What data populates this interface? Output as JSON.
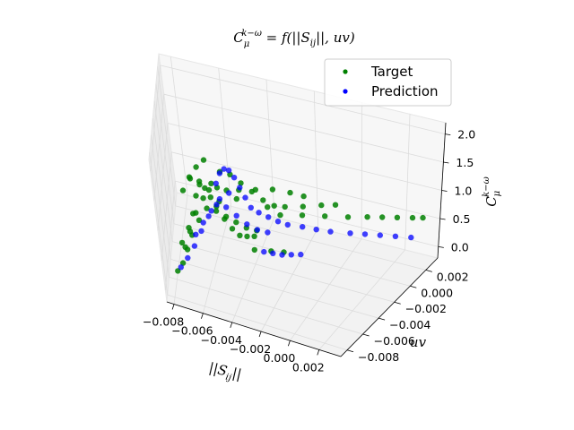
{
  "chart_data": {
    "type": "scatter",
    "projection": "3d",
    "title": "C_μ^{k−ω} = f(||S_ij||, uv)",
    "title_parts": {
      "lhs": "C",
      "lhs_sub": "μ",
      "lhs_sup": "k−ω",
      "rhs": " = f(||S",
      "rhs_sub": "ij",
      "rhs_tail": "||, uv)"
    },
    "xlabel": "||S_ij||",
    "xlabel_parts": {
      "main": "||S",
      "sub": "ij",
      "tail": "||"
    },
    "ylabel": "uv",
    "zlabel": "C_μ^{k−ω}",
    "zlabel_parts": {
      "main": "C",
      "sub": "μ",
      "sup": "k−ω"
    },
    "x_ticks": [
      "−0.008",
      "−0.006",
      "−0.004",
      "−0.002",
      "0.000",
      "0.002"
    ],
    "y_ticks": [
      "−0.008",
      "−0.006",
      "−0.004",
      "−0.002",
      "0.000",
      "0.002"
    ],
    "z_ticks": [
      "0.0",
      "0.5",
      "1.0",
      "1.5",
      "2.0"
    ],
    "xlim": [
      -0.0085,
      0.0035
    ],
    "ylim": [
      -0.0088,
      0.0035
    ],
    "zlim": [
      -0.2,
      2.2
    ],
    "legend_position": "top-right",
    "grid": true,
    "series": [
      {
        "name": "Target",
        "color": "#008000",
        "points": [
          [
            -0.0078,
            -0.0066,
            0.05
          ],
          [
            -0.0075,
            -0.006,
            0.12
          ],
          [
            -0.0072,
            -0.0055,
            0.3
          ],
          [
            -0.007,
            -0.005,
            0.55
          ],
          [
            -0.0068,
            -0.0045,
            0.8
          ],
          [
            -0.0066,
            -0.004,
            1.05
          ],
          [
            -0.0064,
            -0.0036,
            1.2
          ],
          [
            -0.0062,
            -0.0032,
            1.1
          ],
          [
            -0.006,
            -0.0028,
            0.9
          ],
          [
            -0.0058,
            -0.0024,
            0.7
          ],
          [
            -0.0055,
            -0.002,
            0.45
          ],
          [
            -0.0052,
            -0.0016,
            0.25
          ],
          [
            -0.0049,
            -0.0012,
            0.1
          ],
          [
            -0.0046,
            -0.0008,
            0.05
          ],
          [
            -0.0043,
            -0.0004,
            0.02
          ],
          [
            -0.0074,
            -0.005,
            0.25
          ],
          [
            -0.007,
            -0.0044,
            0.4
          ],
          [
            -0.0066,
            -0.0038,
            0.6
          ],
          [
            -0.0062,
            -0.0032,
            0.75
          ],
          [
            -0.0058,
            -0.0026,
            0.65
          ],
          [
            -0.0054,
            -0.002,
            0.5
          ],
          [
            -0.005,
            -0.0014,
            0.35
          ],
          [
            -0.0046,
            -0.0008,
            0.2
          ],
          [
            -0.0042,
            -0.0002,
            0.1
          ],
          [
            -0.0077,
            -0.004,
            0.15
          ],
          [
            -0.0073,
            -0.0034,
            0.35
          ],
          [
            -0.0069,
            -0.0028,
            0.55
          ],
          [
            -0.0065,
            -0.0022,
            0.75
          ],
          [
            -0.0061,
            -0.0016,
            0.95
          ],
          [
            -0.0057,
            -0.001,
            1.1
          ],
          [
            -0.0053,
            -0.0004,
            1.0
          ],
          [
            -0.0049,
            0.0002,
            0.8
          ],
          [
            -0.0045,
            0.0008,
            0.6
          ],
          [
            -0.0041,
            0.0014,
            0.4
          ],
          [
            -0.0037,
            0.002,
            0.25
          ],
          [
            -0.007,
            -0.006,
            1.4
          ],
          [
            -0.0066,
            -0.0054,
            1.55
          ],
          [
            -0.0062,
            -0.0048,
            1.45
          ],
          [
            -0.0058,
            -0.0042,
            1.25
          ],
          [
            -0.0054,
            -0.0036,
            1.0
          ],
          [
            -0.005,
            -0.0058,
            1.6
          ],
          [
            -0.0046,
            -0.0052,
            1.5
          ],
          [
            -0.0042,
            -0.0046,
            1.3
          ],
          [
            -0.0064,
            -0.0068,
            1.8
          ],
          [
            -0.006,
            -0.0064,
            1.95
          ],
          [
            -0.0056,
            -0.006,
            2.05
          ],
          [
            -0.003,
            0.0,
            0.45
          ],
          [
            -0.002,
            0.0004,
            0.48
          ],
          [
            -0.001,
            0.0008,
            0.5
          ],
          [
            0.0,
            0.0012,
            0.52
          ],
          [
            0.0008,
            0.0016,
            0.54
          ],
          [
            0.0014,
            0.0019,
            0.55
          ],
          [
            0.002,
            0.0022,
            0.56
          ],
          [
            0.0026,
            0.0025,
            0.57
          ],
          [
            0.003,
            0.0027,
            0.58
          ],
          [
            -0.0034,
            -0.001,
            0.7
          ],
          [
            -0.0026,
            -0.0006,
            0.72
          ],
          [
            -0.0018,
            -0.0002,
            0.74
          ],
          [
            -0.001,
            0.0002,
            0.78
          ],
          [
            -0.0004,
            0.0005,
            0.8
          ],
          [
            -0.0044,
            -0.003,
            1.2
          ],
          [
            -0.0036,
            -0.0026,
            1.22
          ],
          [
            -0.0028,
            -0.0022,
            1.24
          ],
          [
            -0.002,
            -0.0018,
            1.2
          ],
          [
            -0.0014,
            -0.0015,
            1.15
          ],
          [
            -0.004,
            -0.002,
            0.05
          ],
          [
            -0.0032,
            -0.0016,
            0.04
          ],
          [
            -0.0026,
            -0.0013,
            0.03
          ]
        ]
      },
      {
        "name": "Prediction",
        "color": "#0000ff",
        "points": [
          [
            -0.0076,
            -0.0064,
            0.1
          ],
          [
            -0.0072,
            -0.0058,
            0.2
          ],
          [
            -0.0068,
            -0.0052,
            0.35
          ],
          [
            -0.0064,
            -0.0046,
            0.55
          ],
          [
            -0.006,
            -0.004,
            0.75
          ],
          [
            -0.0056,
            -0.0034,
            0.9
          ],
          [
            -0.0052,
            -0.0028,
            0.8
          ],
          [
            -0.0048,
            -0.0022,
            0.6
          ],
          [
            -0.0044,
            -0.0016,
            0.4
          ],
          [
            -0.004,
            -0.001,
            0.25
          ],
          [
            -0.0036,
            -0.0004,
            0.15
          ],
          [
            -0.005,
            -0.006,
            1.7
          ],
          [
            -0.0048,
            -0.0057,
            1.85
          ],
          [
            -0.0046,
            -0.0054,
            1.9
          ],
          [
            -0.0044,
            -0.0051,
            1.85
          ],
          [
            -0.0042,
            -0.0048,
            1.7
          ],
          [
            -0.004,
            -0.0045,
            1.5
          ],
          [
            -0.0038,
            -0.0042,
            1.3
          ],
          [
            -0.0036,
            -0.0039,
            1.1
          ],
          [
            -0.0034,
            -0.003,
            0.9
          ],
          [
            -0.003,
            -0.0026,
            0.8
          ],
          [
            -0.0026,
            -0.0022,
            0.7
          ],
          [
            -0.0022,
            -0.0018,
            0.62
          ],
          [
            -0.0016,
            -0.0012,
            0.55
          ],
          [
            -0.001,
            -0.0008,
            0.5
          ],
          [
            -0.0004,
            -0.0004,
            0.46
          ],
          [
            0.0004,
            0.0002,
            0.42
          ],
          [
            0.001,
            0.0006,
            0.4
          ],
          [
            0.0016,
            0.001,
            0.38
          ],
          [
            0.0022,
            0.0014,
            0.36
          ],
          [
            0.0028,
            0.0018,
            0.34
          ],
          [
            -0.003,
            -0.004,
            0.4
          ],
          [
            -0.0026,
            -0.0036,
            0.35
          ],
          [
            -0.0022,
            -0.0032,
            0.3
          ],
          [
            -0.0018,
            -0.0028,
            0.28
          ],
          [
            -0.0014,
            -0.0024,
            0.26
          ],
          [
            -0.007,
            -0.003,
            0.2
          ],
          [
            -0.0066,
            -0.0024,
            0.35
          ],
          [
            -0.0062,
            -0.0018,
            0.5
          ],
          [
            -0.0058,
            -0.0012,
            0.65
          ],
          [
            -0.0054,
            -0.0006,
            0.7
          ]
        ]
      }
    ]
  }
}
